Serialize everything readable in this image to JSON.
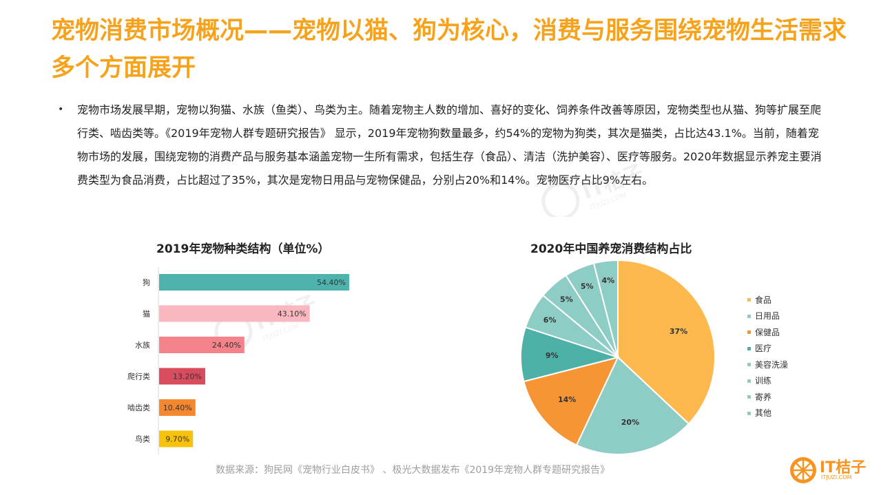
{
  "header": {
    "title": "宠物消费市场概况——宠物以猫、狗为核心，消费与服务围绕宠物生活需求多个方面展开"
  },
  "body": {
    "bullet": "•",
    "paragraph": "宠物市场发展早期，宠物以狗猫、水族（鱼类）、鸟类为主。随着宠物主人数的增加、喜好的变化、饲养条件改善等原因，宠物类型也从猫、狗等扩展至爬行类、啮齿类等。《2019年宠物人群专题研究报告》 显示，2019年宠物狗数量最多，约54%的宠物为狗类，其次是猫类，占比达43.1%。当前，随着宠物市场的发展，围绕宠物的消费产品与服务基本涵盖宠物一生所有需求，包括生存（食品）、清洁（洗护美容）、医疗等服务。2020年数据显示养宠主要消费类型为食品消费，占比超过了35%，其次是宠物日用品与宠物保健品，分别占20%和14%。宠物医疗占比9%左右。"
  },
  "chart_data": [
    {
      "type": "bar",
      "orientation": "horizontal",
      "title": "2019年宠物种类结构（单位%）",
      "categories": [
        "狗",
        "猫",
        "水族",
        "爬行类",
        "啮齿类",
        "鸟类"
      ],
      "values": [
        54.4,
        43.1,
        24.4,
        13.2,
        10.4,
        9.7
      ],
      "value_labels": [
        "54.40%",
        "43.10%",
        "24.40%",
        "13.20%",
        "10.40%",
        "9.70%"
      ],
      "colors": [
        "#4fb3ad",
        "#f9b7c0",
        "#f5838c",
        "#d94c5e",
        "#f5882e",
        "#f6c20c"
      ],
      "xlim": [
        0,
        54.4
      ],
      "grid": false
    },
    {
      "type": "pie",
      "title": "2020年中国养宠消费结构占比",
      "categories": [
        "食品",
        "日用品",
        "保健品",
        "医疗",
        "美容洗澡",
        "训练",
        "寄养",
        "其他"
      ],
      "values": [
        37,
        20,
        14,
        9,
        6,
        5,
        5,
        4
      ],
      "value_labels": [
        "37%",
        "20%",
        "14%",
        "9%",
        "6%",
        "5%",
        "5%",
        "4%"
      ],
      "colors": [
        "#fdb94d",
        "#8ecdc5",
        "#f79433",
        "#4db1a8",
        "#8ecdc5",
        "#8ecdc5",
        "#8ecdc5",
        "#8ecdc5"
      ],
      "legend_position": "right"
    }
  ],
  "footer": {
    "source": "数据来源：狗民网《宠物行业白皮书》 、极光大数据发布《2019年宠物人群专题研究报告》"
  },
  "logo": {
    "text": "IT桔子",
    "subtext": "ITJUZI.COM",
    "icon": "orange-slice-icon",
    "color": "#f7931e"
  },
  "watermark": {
    "text": "IT桔子",
    "subtext": "ITJUZI.COM"
  }
}
